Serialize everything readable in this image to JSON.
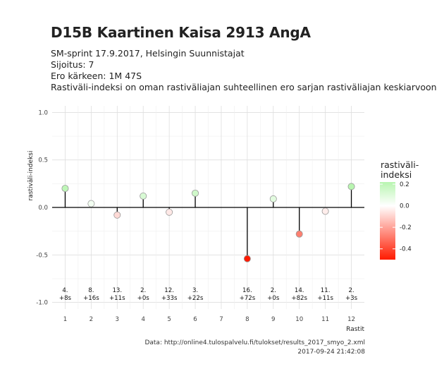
{
  "header": {
    "title": "D15B Kaartinen Kaisa 2913 AngA",
    "line1": "SM-sprint 17.9.2017, Helsingin Suunnistajat",
    "line2": "Sijoitus: 7",
    "line3": "Ero kärkeen: 1M 47S",
    "line4": "Rastiväli-indeksi on oman rastiväliajan suhteellinen ero sarjan rastiväliajan keskiarvoon"
  },
  "caption": {
    "source": "Data: http://online4.tulospalvelu.fi/tulokset/results_2017_smyo_2.xml",
    "timestamp": "2017-09-24 21:42:08"
  },
  "chart_data": {
    "type": "scatter",
    "xlabel": "Rastit",
    "ylabel": "rastiväli-indeksi",
    "xlim": [
      0.5,
      12.5
    ],
    "ylim": [
      -1.0,
      1.0
    ],
    "x_ticks": [
      "1",
      "2",
      "3",
      "4",
      "5",
      "6",
      "7",
      "8",
      "9",
      "10",
      "11",
      "12"
    ],
    "y_ticks": [
      {
        "v": 1.0,
        "label": "1.0"
      },
      {
        "v": 0.5,
        "label": "0.5"
      },
      {
        "v": 0.0,
        "label": "0.0"
      },
      {
        "v": -0.5,
        "label": "-0.5"
      },
      {
        "v": -1.0,
        "label": "-1.0"
      }
    ],
    "grid": true,
    "points": [
      {
        "x": 1,
        "y": 0.2,
        "rank": "4.",
        "diff": "+8s"
      },
      {
        "x": 2,
        "y": 0.04,
        "rank": "8.",
        "diff": "+16s"
      },
      {
        "x": 3,
        "y": -0.08,
        "rank": "13.",
        "diff": "+11s"
      },
      {
        "x": 4,
        "y": 0.12,
        "rank": "2.",
        "diff": "+0s"
      },
      {
        "x": 5,
        "y": -0.05,
        "rank": "12.",
        "diff": "+33s"
      },
      {
        "x": 6,
        "y": 0.15,
        "rank": "3.",
        "diff": "+22s"
      },
      {
        "x": 8,
        "y": -0.54,
        "rank": "16.",
        "diff": "+72s"
      },
      {
        "x": 9,
        "y": 0.09,
        "rank": "2.",
        "diff": "+0s"
      },
      {
        "x": 10,
        "y": -0.28,
        "rank": "14.",
        "diff": "+82s"
      },
      {
        "x": 11,
        "y": -0.04,
        "rank": "11.",
        "diff": "+11s"
      },
      {
        "x": 12,
        "y": 0.22,
        "rank": "2.",
        "diff": "+3s"
      }
    ],
    "legend": {
      "title_line1": "rastiväli-",
      "title_line2": "indeksi",
      "placement": "right",
      "range": [
        -0.5,
        0.22
      ],
      "ticks": [
        {
          "v": 0.2,
          "label": "0.2"
        },
        {
          "v": 0.0,
          "label": "0.0"
        },
        {
          "v": -0.2,
          "label": "-0.2"
        },
        {
          "v": -0.4,
          "label": "-0.4"
        }
      ],
      "colors": {
        "high": "#b8f5b0",
        "mid": "#ffffff",
        "low": "#ff1a00"
      }
    }
  }
}
